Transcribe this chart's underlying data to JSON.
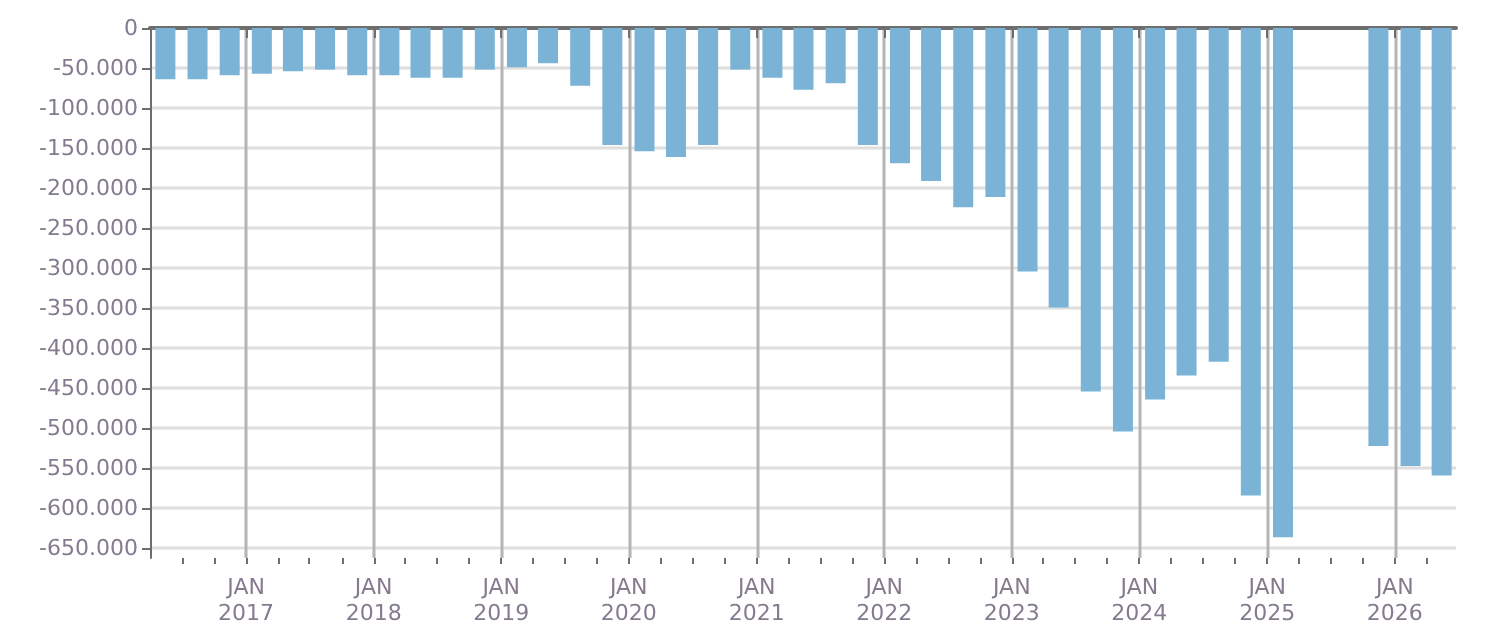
{
  "chart_data": {
    "type": "bar",
    "x": [
      "2016-05-15",
      "2016-08-15",
      "2016-11-15",
      "2017-02-15",
      "2017-05-15",
      "2017-08-15",
      "2017-11-15",
      "2018-02-15",
      "2018-05-15",
      "2018-08-15",
      "2018-11-15",
      "2019-02-15",
      "2019-05-15",
      "2019-08-15",
      "2019-11-15",
      "2020-02-15",
      "2020-05-15",
      "2020-08-15",
      "2020-11-15",
      "2021-02-15",
      "2021-05-15",
      "2021-08-15",
      "2021-11-15",
      "2022-02-15",
      "2022-05-15",
      "2022-08-15",
      "2022-11-15",
      "2023-02-15",
      "2023-05-15",
      "2023-08-15",
      "2023-11-15",
      "2024-02-15",
      "2024-05-15",
      "2024-08-15",
      "2024-11-15",
      "2025-02-15",
      "2025-05-15",
      "2025-08-15",
      "2025-11-15",
      "2026-02-15",
      "2026-05-15"
    ],
    "series": [
      {
        "color": "#7ab3d5",
        "values": [
          -64000,
          -64000,
          -59000,
          -57000,
          -54000,
          -52000,
          -59000,
          -59000,
          -62000,
          -62000,
          -52000,
          -49000,
          -44000,
          -72000,
          -146000,
          -154000,
          -161000,
          -146000,
          -52000,
          -62000,
          -77000,
          -69000,
          -146000,
          -169000,
          -191000,
          -224000,
          -211000,
          -304000,
          -349000,
          -454000,
          -504000,
          -464000,
          -434000,
          -417000,
          -584000,
          -636000,
          null,
          null,
          -522000,
          -547000,
          -559000
        ]
      }
    ],
    "xlim": [
      "2016-04-01",
      "2026-06-25"
    ],
    "xticks": [
      {
        "value": "2016-07-01",
        "label": null
      },
      {
        "value": "2016-10-01",
        "label": null
      },
      {
        "value": "2017-01-01",
        "label": "JAN\n2017"
      },
      {
        "value": "2017-04-01",
        "label": null
      },
      {
        "value": "2017-07-01",
        "label": null
      },
      {
        "value": "2017-10-01",
        "label": null
      },
      {
        "value": "2018-01-01",
        "label": "JAN\n2018"
      },
      {
        "value": "2018-04-01",
        "label": null
      },
      {
        "value": "2018-07-01",
        "label": null
      },
      {
        "value": "2018-10-01",
        "label": null
      },
      {
        "value": "2019-01-01",
        "label": "JAN\n2019"
      },
      {
        "value": "2019-04-01",
        "label": null
      },
      {
        "value": "2019-07-01",
        "label": null
      },
      {
        "value": "2019-10-01",
        "label": null
      },
      {
        "value": "2020-01-01",
        "label": "JAN\n2020"
      },
      {
        "value": "2020-04-01",
        "label": null
      },
      {
        "value": "2020-07-01",
        "label": null
      },
      {
        "value": "2020-10-01",
        "label": null
      },
      {
        "value": "2021-01-01",
        "label": "JAN\n2021"
      },
      {
        "value": "2021-04-01",
        "label": null
      },
      {
        "value": "2021-07-01",
        "label": null
      },
      {
        "value": "2021-10-01",
        "label": null
      },
      {
        "value": "2022-01-01",
        "label": "JAN\n2022"
      },
      {
        "value": "2022-04-01",
        "label": null
      },
      {
        "value": "2022-07-01",
        "label": null
      },
      {
        "value": "2022-10-01",
        "label": null
      },
      {
        "value": "2023-01-01",
        "label": "JAN\n2023"
      },
      {
        "value": "2023-04-01",
        "label": null
      },
      {
        "value": "2023-07-01",
        "label": null
      },
      {
        "value": "2023-10-01",
        "label": null
      },
      {
        "value": "2024-01-01",
        "label": "JAN\n2024"
      },
      {
        "value": "2024-04-01",
        "label": null
      },
      {
        "value": "2024-07-01",
        "label": null
      },
      {
        "value": "2024-10-01",
        "label": null
      },
      {
        "value": "2025-01-01",
        "label": "JAN\n2025"
      },
      {
        "value": "2025-04-01",
        "label": null
      },
      {
        "value": "2025-07-01",
        "label": null
      },
      {
        "value": "2025-10-01",
        "label": null
      },
      {
        "value": "2026-01-01",
        "label": "JAN\n2026"
      },
      {
        "value": "2026-04-01",
        "label": null
      }
    ],
    "ylim": [
      -662000,
      0
    ],
    "yticks": [
      {
        "value": 0,
        "label": "0"
      },
      {
        "value": -50000,
        "label": "-50.000"
      },
      {
        "value": -100000,
        "label": "-100.000"
      },
      {
        "value": -150000,
        "label": "-150.000"
      },
      {
        "value": -200000,
        "label": "-200.000"
      },
      {
        "value": -250000,
        "label": "-250.000"
      },
      {
        "value": -300000,
        "label": "-300.000"
      },
      {
        "value": -350000,
        "label": "-350.000"
      },
      {
        "value": -400000,
        "label": "-400.000"
      },
      {
        "value": -450000,
        "label": "-450.000"
      },
      {
        "value": -500000,
        "label": "-500.000"
      },
      {
        "value": -550000,
        "label": "-550.000"
      },
      {
        "value": -600000,
        "label": "-600.000"
      },
      {
        "value": -650000,
        "label": "-650.000"
      }
    ],
    "grid": true
  }
}
